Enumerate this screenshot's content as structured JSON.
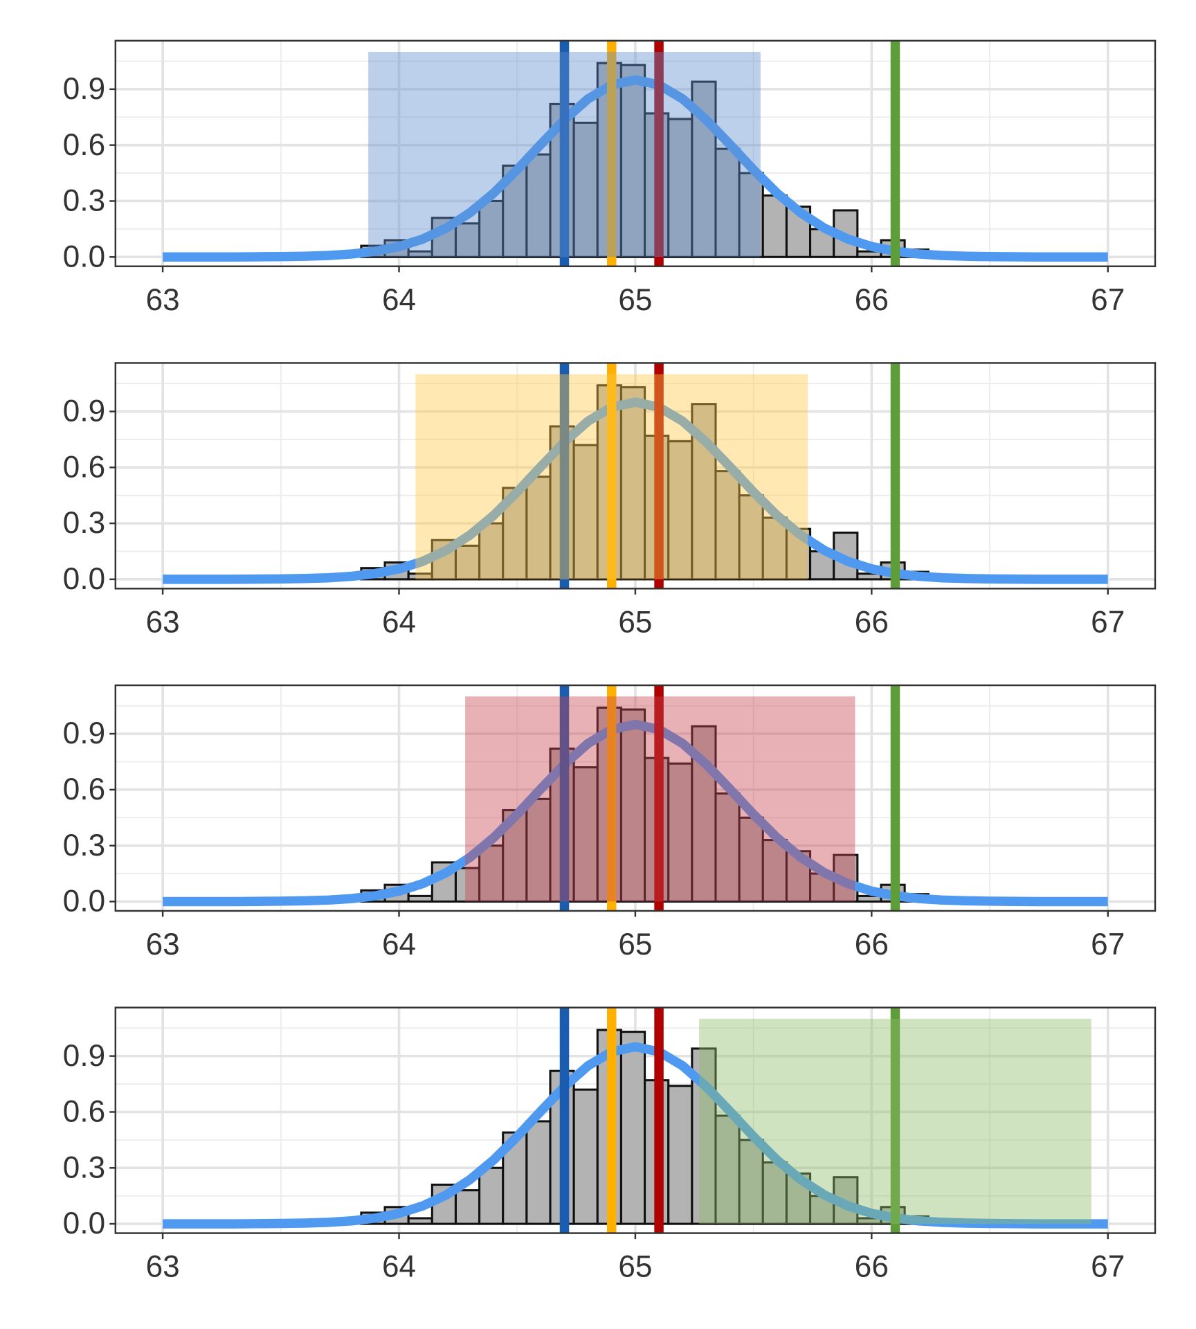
{
  "chart_data": [
    {
      "type": "histogram",
      "bins": [
        63.84,
        63.94,
        64.04,
        64.14,
        64.24,
        64.34,
        64.44,
        64.54,
        64.64,
        64.74,
        64.84,
        64.94,
        65.04,
        65.14,
        65.24,
        65.34,
        65.44,
        65.54,
        65.64,
        65.74,
        65.84,
        65.94,
        66.04,
        66.14,
        66.24
      ],
      "values": [
        0.06,
        0.09,
        0.03,
        0.21,
        0.18,
        0.3,
        0.49,
        0.55,
        0.82,
        0.72,
        1.04,
        1.03,
        0.77,
        0.74,
        0.94,
        0.58,
        0.45,
        0.33,
        0.27,
        0.15,
        0.25,
        0.03,
        0.09,
        0.04
      ],
      "color": "#b3b3b3",
      "curve": {
        "color": "#4f9af0",
        "x": [
          63,
          63.1,
          63.2,
          63.3,
          63.4,
          63.5,
          63.6,
          63.7,
          63.8,
          63.9,
          64,
          64.1,
          64.2,
          64.3,
          64.4,
          64.5,
          64.6,
          64.7,
          64.8,
          64.9,
          65,
          65.1,
          65.2,
          65.3,
          65.4,
          65.5,
          65.6,
          65.7,
          65.8,
          65.9,
          66,
          66.1,
          66.2,
          66.3,
          66.4,
          66.5,
          66.6,
          66.7,
          66.8,
          66.9,
          67
        ],
        "y": [
          0,
          0,
          0,
          0,
          0.001,
          0.002,
          0.004,
          0.008,
          0.016,
          0.031,
          0.056,
          0.096,
          0.155,
          0.237,
          0.342,
          0.468,
          0.604,
          0.736,
          0.848,
          0.923,
          0.95,
          0.923,
          0.848,
          0.736,
          0.604,
          0.468,
          0.342,
          0.237,
          0.155,
          0.096,
          0.056,
          0.031,
          0.016,
          0.008,
          0.004,
          0.002,
          0.001,
          0,
          0,
          0,
          0
        ]
      },
      "vlines": {
        "x": [
          64.7,
          64.9,
          65.1,
          66.1
        ],
        "colors": [
          "#1a5cb0",
          "#ffb000",
          "#b00000",
          "#5e9e3a"
        ]
      },
      "band": {
        "x": [
          63.87,
          65.53
        ],
        "top": 1.1,
        "color": "#5f8fcf"
      },
      "xlim": [
        62.8,
        67.2
      ],
      "ylim": [
        -0.05,
        1.16
      ],
      "xticks": [
        63,
        64,
        65,
        66,
        67
      ],
      "yticks": [
        {
          "value": 0,
          "label": "0.0"
        },
        0.3,
        0.6,
        0.9
      ],
      "xminor": [
        63.5,
        64.5,
        65.5,
        66.5
      ],
      "yminor": [
        0.15,
        0.45,
        0.75,
        1.05
      ],
      "grid": true
    },
    {
      "type": "histogram",
      "bins": [
        63.84,
        63.94,
        64.04,
        64.14,
        64.24,
        64.34,
        64.44,
        64.54,
        64.64,
        64.74,
        64.84,
        64.94,
        65.04,
        65.14,
        65.24,
        65.34,
        65.44,
        65.54,
        65.64,
        65.74,
        65.84,
        65.94,
        66.04,
        66.14,
        66.24
      ],
      "values": [
        0.06,
        0.09,
        0.03,
        0.21,
        0.18,
        0.3,
        0.49,
        0.55,
        0.82,
        0.72,
        1.04,
        1.03,
        0.77,
        0.74,
        0.94,
        0.58,
        0.45,
        0.33,
        0.27,
        0.15,
        0.25,
        0.03,
        0.09,
        0.04
      ],
      "color": "#b3b3b3",
      "curve": {
        "color": "#4f9af0",
        "x": [
          63,
          63.1,
          63.2,
          63.3,
          63.4,
          63.5,
          63.6,
          63.7,
          63.8,
          63.9,
          64,
          64.1,
          64.2,
          64.3,
          64.4,
          64.5,
          64.6,
          64.7,
          64.8,
          64.9,
          65,
          65.1,
          65.2,
          65.3,
          65.4,
          65.5,
          65.6,
          65.7,
          65.8,
          65.9,
          66,
          66.1,
          66.2,
          66.3,
          66.4,
          66.5,
          66.6,
          66.7,
          66.8,
          66.9,
          67
        ],
        "y": [
          0,
          0,
          0,
          0,
          0.001,
          0.002,
          0.004,
          0.008,
          0.016,
          0.031,
          0.056,
          0.096,
          0.155,
          0.237,
          0.342,
          0.468,
          0.604,
          0.736,
          0.848,
          0.923,
          0.95,
          0.923,
          0.848,
          0.736,
          0.604,
          0.468,
          0.342,
          0.237,
          0.155,
          0.096,
          0.056,
          0.031,
          0.016,
          0.008,
          0.004,
          0.002,
          0.001,
          0,
          0,
          0,
          0
        ]
      },
      "vlines": {
        "x": [
          64.7,
          64.9,
          65.1,
          66.1
        ],
        "colors": [
          "#1a5cb0",
          "#ffb000",
          "#b00000",
          "#5e9e3a"
        ]
      },
      "band": {
        "x": [
          64.07,
          65.73
        ],
        "top": 1.1,
        "color": "#ffc845"
      },
      "xlim": [
        62.8,
        67.2
      ],
      "ylim": [
        -0.05,
        1.16
      ],
      "xticks": [
        63,
        64,
        65,
        66,
        67
      ],
      "yticks": [
        {
          "value": 0,
          "label": "0.0"
        },
        0.3,
        0.6,
        0.9
      ],
      "xminor": [
        63.5,
        64.5,
        65.5,
        66.5
      ],
      "yminor": [
        0.15,
        0.45,
        0.75,
        1.05
      ],
      "grid": true
    },
    {
      "type": "histogram",
      "bins": [
        63.84,
        63.94,
        64.04,
        64.14,
        64.24,
        64.34,
        64.44,
        64.54,
        64.64,
        64.74,
        64.84,
        64.94,
        65.04,
        65.14,
        65.24,
        65.34,
        65.44,
        65.54,
        65.64,
        65.74,
        65.84,
        65.94,
        66.04,
        66.14,
        66.24
      ],
      "values": [
        0.06,
        0.09,
        0.03,
        0.21,
        0.18,
        0.3,
        0.49,
        0.55,
        0.82,
        0.72,
        1.04,
        1.03,
        0.77,
        0.74,
        0.94,
        0.58,
        0.45,
        0.33,
        0.27,
        0.15,
        0.25,
        0.03,
        0.09,
        0.04
      ],
      "color": "#b3b3b3",
      "curve": {
        "color": "#4f9af0",
        "x": [
          63,
          63.1,
          63.2,
          63.3,
          63.4,
          63.5,
          63.6,
          63.7,
          63.8,
          63.9,
          64,
          64.1,
          64.2,
          64.3,
          64.4,
          64.5,
          64.6,
          64.7,
          64.8,
          64.9,
          65,
          65.1,
          65.2,
          65.3,
          65.4,
          65.5,
          65.6,
          65.7,
          65.8,
          65.9,
          66,
          66.1,
          66.2,
          66.3,
          66.4,
          66.5,
          66.6,
          66.7,
          66.8,
          66.9,
          67
        ],
        "y": [
          0,
          0,
          0,
          0,
          0.001,
          0.002,
          0.004,
          0.008,
          0.016,
          0.031,
          0.056,
          0.096,
          0.155,
          0.237,
          0.342,
          0.468,
          0.604,
          0.736,
          0.848,
          0.923,
          0.95,
          0.923,
          0.848,
          0.736,
          0.604,
          0.468,
          0.342,
          0.237,
          0.155,
          0.096,
          0.056,
          0.031,
          0.016,
          0.008,
          0.004,
          0.002,
          0.001,
          0,
          0,
          0,
          0
        ]
      },
      "vlines": {
        "x": [
          64.7,
          64.9,
          65.1,
          66.1
        ],
        "colors": [
          "#1a5cb0",
          "#ffb000",
          "#b00000",
          "#5e9e3a"
        ]
      },
      "band": {
        "x": [
          64.28,
          65.93
        ],
        "top": 1.1,
        "color": "#c6464f"
      },
      "xlim": [
        62.8,
        67.2
      ],
      "ylim": [
        -0.05,
        1.16
      ],
      "xticks": [
        63,
        64,
        65,
        66,
        67
      ],
      "yticks": [
        {
          "value": 0,
          "label": "0.0"
        },
        0.3,
        0.6,
        0.9
      ],
      "xminor": [
        63.5,
        64.5,
        65.5,
        66.5
      ],
      "yminor": [
        0.15,
        0.45,
        0.75,
        1.05
      ],
      "grid": true
    },
    {
      "type": "histogram",
      "bins": [
        63.84,
        63.94,
        64.04,
        64.14,
        64.24,
        64.34,
        64.44,
        64.54,
        64.64,
        64.74,
        64.84,
        64.94,
        65.04,
        65.14,
        65.24,
        65.34,
        65.44,
        65.54,
        65.64,
        65.74,
        65.84,
        65.94,
        66.04,
        66.14,
        66.24
      ],
      "values": [
        0.06,
        0.09,
        0.03,
        0.21,
        0.18,
        0.3,
        0.49,
        0.55,
        0.82,
        0.72,
        1.04,
        1.03,
        0.77,
        0.74,
        0.94,
        0.58,
        0.45,
        0.33,
        0.27,
        0.15,
        0.25,
        0.03,
        0.09,
        0.04
      ],
      "color": "#b3b3b3",
      "curve": {
        "color": "#4f9af0",
        "x": [
          63,
          63.1,
          63.2,
          63.3,
          63.4,
          63.5,
          63.6,
          63.7,
          63.8,
          63.9,
          64,
          64.1,
          64.2,
          64.3,
          64.4,
          64.5,
          64.6,
          64.7,
          64.8,
          64.9,
          65,
          65.1,
          65.2,
          65.3,
          65.4,
          65.5,
          65.6,
          65.7,
          65.8,
          65.9,
          66,
          66.1,
          66.2,
          66.3,
          66.4,
          66.5,
          66.6,
          66.7,
          66.8,
          66.9,
          67
        ],
        "y": [
          0,
          0,
          0,
          0,
          0.001,
          0.002,
          0.004,
          0.008,
          0.016,
          0.031,
          0.056,
          0.096,
          0.155,
          0.237,
          0.342,
          0.468,
          0.604,
          0.736,
          0.848,
          0.923,
          0.95,
          0.923,
          0.848,
          0.736,
          0.604,
          0.468,
          0.342,
          0.237,
          0.155,
          0.096,
          0.056,
          0.031,
          0.016,
          0.008,
          0.004,
          0.002,
          0.001,
          0,
          0,
          0,
          0
        ]
      },
      "vlines": {
        "x": [
          64.7,
          64.9,
          65.1,
          66.1
        ],
        "colors": [
          "#1a5cb0",
          "#ffb000",
          "#b00000",
          "#5e9e3a"
        ]
      },
      "band": {
        "x": [
          65.27,
          66.93
        ],
        "top": 1.1,
        "color": "#8cbd6a"
      },
      "xlim": [
        62.8,
        67.2
      ],
      "ylim": [
        -0.05,
        1.16
      ],
      "xticks": [
        63,
        64,
        65,
        66,
        67
      ],
      "yticks": [
        {
          "value": 0,
          "label": "0.0"
        },
        0.3,
        0.6,
        0.9
      ],
      "xminor": [
        63.5,
        64.5,
        65.5,
        66.5
      ],
      "yminor": [
        0.15,
        0.45,
        0.75,
        1.05
      ],
      "grid": true
    }
  ]
}
